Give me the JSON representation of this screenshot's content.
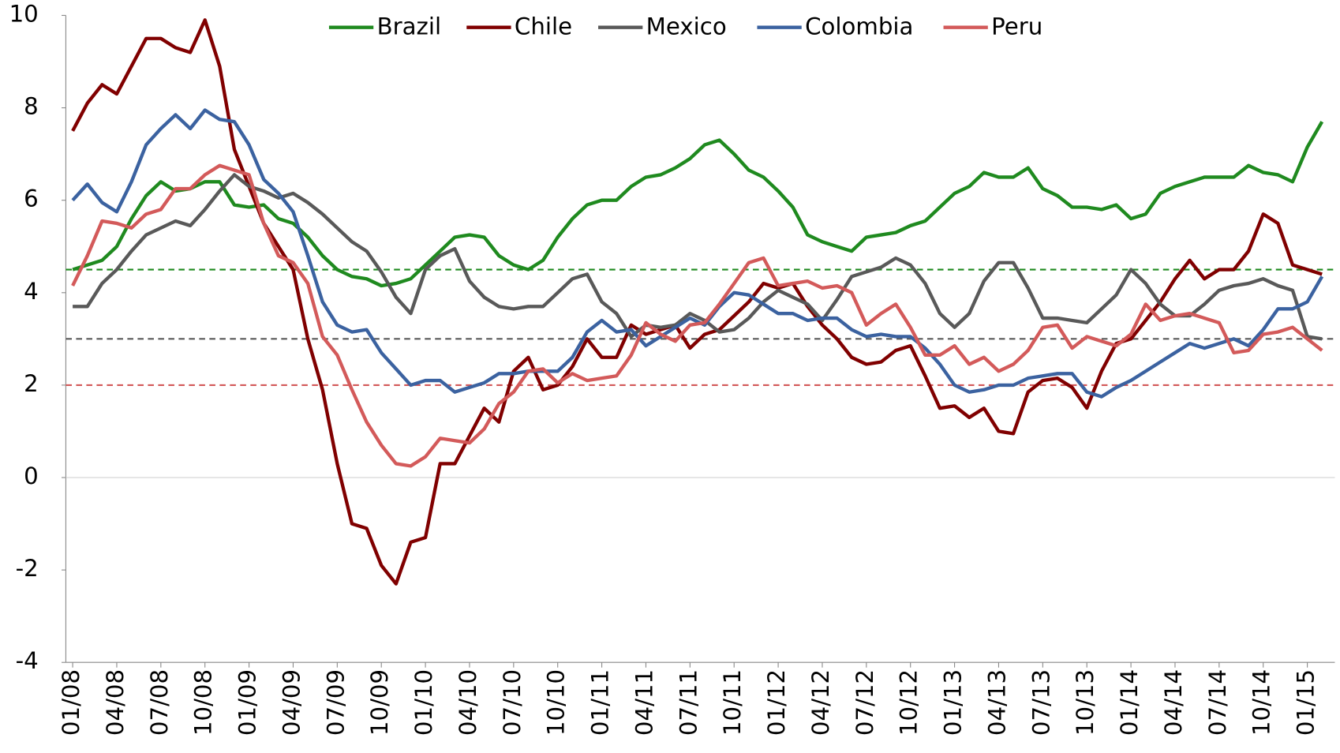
{
  "chart_data": {
    "type": "line",
    "categories": [
      "01/08",
      null,
      null,
      "04/08",
      null,
      null,
      "07/08",
      null,
      null,
      "10/08",
      null,
      null,
      "01/09",
      null,
      null,
      "04/09",
      null,
      null,
      "07/09",
      null,
      null,
      "10/09",
      null,
      null,
      "01/10",
      null,
      null,
      "04/10",
      null,
      null,
      "07/10",
      null,
      null,
      "10/10",
      null,
      null,
      "01/11",
      null,
      null,
      "04/11",
      null,
      null,
      "07/11",
      null,
      null,
      "10/11",
      null,
      null,
      "01/12",
      null,
      null,
      "04/12",
      null,
      null,
      "07/12",
      null,
      null,
      "10/12",
      null,
      null,
      "01/13",
      null,
      null,
      "04/13",
      null,
      null,
      "07/13",
      null,
      null,
      "10/13",
      null,
      null,
      "01/14",
      null,
      null,
      "04/14",
      null,
      null,
      "07/14",
      null,
      null,
      "10/14",
      null,
      null,
      "01/15",
      null
    ],
    "ylim": [
      -4,
      10
    ],
    "yticks": [
      -4,
      -2,
      0,
      2,
      4,
      6,
      8,
      10
    ],
    "series": [
      {
        "name": "Brazil",
        "color": "#1f8a1f",
        "values": [
          4.5,
          4.6,
          4.7,
          5.0,
          5.6,
          6.1,
          6.4,
          6.2,
          6.25,
          6.4,
          6.4,
          5.9,
          5.85,
          5.9,
          5.6,
          5.5,
          5.2,
          4.8,
          4.5,
          4.35,
          4.3,
          4.15,
          4.2,
          4.3,
          4.6,
          4.9,
          5.2,
          5.25,
          5.2,
          4.8,
          4.6,
          4.5,
          4.7,
          5.2,
          5.6,
          5.9,
          6.0,
          6.0,
          6.3,
          6.5,
          6.55,
          6.7,
          6.9,
          7.2,
          7.3,
          7.0,
          6.65,
          6.5,
          6.2,
          5.85,
          5.25,
          5.1,
          5.0,
          4.9,
          5.2,
          5.25,
          5.3,
          5.45,
          5.55,
          5.85,
          6.15,
          6.3,
          6.6,
          6.5,
          6.5,
          6.7,
          6.25,
          6.1,
          5.85,
          5.85,
          5.8,
          5.9,
          5.6,
          5.7,
          6.15,
          6.3,
          6.4,
          6.5,
          6.5,
          6.5,
          6.75,
          6.6,
          6.55,
          6.4,
          7.15,
          7.7
        ]
      },
      {
        "name": "Chile",
        "color": "#800000",
        "values": [
          7.5,
          8.1,
          8.5,
          8.3,
          8.9,
          9.5,
          9.5,
          9.3,
          9.2,
          9.9,
          8.9,
          7.1,
          6.3,
          5.5,
          5.0,
          4.5,
          3.0,
          1.9,
          0.3,
          -1.0,
          -1.1,
          -1.9,
          -2.3,
          -1.4,
          -1.3,
          0.3,
          0.3,
          0.9,
          1.5,
          1.2,
          2.3,
          2.6,
          1.9,
          2.0,
          2.4,
          3.0,
          2.6,
          2.6,
          3.3,
          3.1,
          3.2,
          3.3,
          2.8,
          3.1,
          3.2,
          3.5,
          3.8,
          4.2,
          4.1,
          4.2,
          3.7,
          3.3,
          3.0,
          2.6,
          2.45,
          2.5,
          2.75,
          2.85,
          2.2,
          1.5,
          1.55,
          1.3,
          1.5,
          1.0,
          0.95,
          1.85,
          2.1,
          2.15,
          1.95,
          1.5,
          2.3,
          2.9,
          3.0,
          3.4,
          3.8,
          4.3,
          4.7,
          4.3,
          4.5,
          4.5,
          4.9,
          5.7,
          5.5,
          4.6,
          4.5,
          4.4
        ]
      },
      {
        "name": "Mexico",
        "color": "#595959",
        "values": [
          3.7,
          3.7,
          4.2,
          4.5,
          4.9,
          5.25,
          5.4,
          5.55,
          5.45,
          5.8,
          6.2,
          6.55,
          6.3,
          6.2,
          6.05,
          6.15,
          5.95,
          5.7,
          5.4,
          5.1,
          4.9,
          4.45,
          3.9,
          3.55,
          4.5,
          4.8,
          4.95,
          4.25,
          3.9,
          3.7,
          3.65,
          3.7,
          3.7,
          4.0,
          4.3,
          4.4,
          3.8,
          3.55,
          3.05,
          3.3,
          3.25,
          3.3,
          3.55,
          3.4,
          3.15,
          3.2,
          3.45,
          3.8,
          4.05,
          3.9,
          3.75,
          3.4,
          3.85,
          4.35,
          4.45,
          4.55,
          4.75,
          4.6,
          4.2,
          3.55,
          3.25,
          3.55,
          4.25,
          4.65,
          4.65,
          4.1,
          3.45,
          3.45,
          3.4,
          3.35,
          3.65,
          3.95,
          4.5,
          4.2,
          3.75,
          3.5,
          3.5,
          3.75,
          4.05,
          4.15,
          4.2,
          4.3,
          4.15,
          4.05,
          3.05,
          3.0
        ]
      },
      {
        "name": "Colombia",
        "color": "#3b62a0",
        "values": [
          6.0,
          6.35,
          5.95,
          5.75,
          6.4,
          7.2,
          7.55,
          7.85,
          7.55,
          7.95,
          7.75,
          7.7,
          7.2,
          6.45,
          6.15,
          5.75,
          4.8,
          3.8,
          3.3,
          3.15,
          3.2,
          2.7,
          2.35,
          2.0,
          2.1,
          2.1,
          1.85,
          1.95,
          2.05,
          2.25,
          2.25,
          2.3,
          2.3,
          2.3,
          2.6,
          3.15,
          3.4,
          3.15,
          3.2,
          2.85,
          3.05,
          3.25,
          3.45,
          3.3,
          3.7,
          4.0,
          3.95,
          3.75,
          3.55,
          3.55,
          3.4,
          3.45,
          3.45,
          3.2,
          3.05,
          3.1,
          3.05,
          3.05,
          2.8,
          2.45,
          2.0,
          1.85,
          1.9,
          2.0,
          2.0,
          2.15,
          2.2,
          2.25,
          2.25,
          1.85,
          1.75,
          1.95,
          2.1,
          2.3,
          2.5,
          2.7,
          2.9,
          2.8,
          2.9,
          3.0,
          2.85,
          3.2,
          3.65,
          3.65,
          3.8,
          4.35
        ]
      },
      {
        "name": "Peru",
        "color": "#d35a5a",
        "values": [
          4.15,
          4.8,
          5.55,
          5.5,
          5.4,
          5.7,
          5.8,
          6.25,
          6.25,
          6.55,
          6.75,
          6.65,
          6.55,
          5.5,
          4.8,
          4.65,
          4.2,
          3.05,
          2.65,
          1.9,
          1.2,
          0.7,
          0.3,
          0.25,
          0.45,
          0.85,
          0.8,
          0.75,
          1.05,
          1.6,
          1.85,
          2.3,
          2.35,
          2.05,
          2.25,
          2.1,
          2.15,
          2.2,
          2.65,
          3.35,
          3.1,
          2.95,
          3.3,
          3.35,
          3.75,
          4.2,
          4.65,
          4.75,
          4.15,
          4.2,
          4.25,
          4.1,
          4.15,
          4.0,
          3.3,
          3.55,
          3.75,
          3.25,
          2.65,
          2.65,
          2.85,
          2.45,
          2.6,
          2.3,
          2.45,
          2.75,
          3.25,
          3.3,
          2.8,
          3.05,
          2.95,
          2.85,
          3.1,
          3.75,
          3.4,
          3.5,
          3.55,
          3.45,
          3.35,
          2.7,
          2.75,
          3.1,
          3.15,
          3.25,
          3.0,
          2.75
        ]
      }
    ],
    "reference_lines": [
      {
        "value": 4.5,
        "color": "#1f8a1f"
      },
      {
        "value": 3,
        "color": "#595959"
      },
      {
        "value": 2,
        "color": "#d35a5a"
      }
    ]
  }
}
